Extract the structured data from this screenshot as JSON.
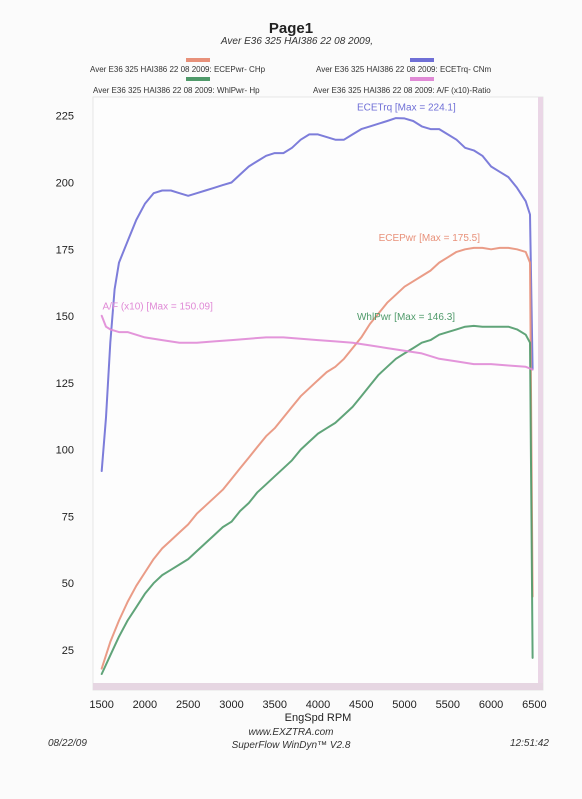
{
  "page": {
    "title": "Page1",
    "subtitle": "Aver E36 325 HAI386 22 08 2009,"
  },
  "legend": [
    {
      "label": "Aver E36 325 HAI386 22 08 2009: ECEPwr- CHp",
      "color": "#e8917a"
    },
    {
      "label": "Aver E36 325 HAI386 22 08 2009: ECETrq- CNm",
      "color": "#6f6fd6"
    },
    {
      "label": "Aver E36 325 HAI386 22 08 2009: WhlPwr- Hp",
      "color": "#4f9a6a"
    },
    {
      "label": "Aver E36 325 HAI386 22 08 2009: A/F (x10)-Ratio",
      "color": "#e08ad6"
    }
  ],
  "footer": {
    "date": "08/22/09",
    "site": "www.EXZTRA.com",
    "software": "SuperFlow WinDyn™ V2.8",
    "time": "12:51:42"
  },
  "chart_data": {
    "type": "line",
    "xlabel": "EngSpd  RPM",
    "ylabel": "",
    "xlim": [
      1400,
      6600
    ],
    "ylim": [
      10,
      232
    ],
    "xticks": [
      1500,
      2000,
      2500,
      3000,
      3500,
      4000,
      4500,
      5000,
      5500,
      6000,
      6500
    ],
    "yticks": [
      25,
      50,
      75,
      100,
      125,
      150,
      175,
      200,
      225
    ],
    "grid": false,
    "series": [
      {
        "name": "ECETrq",
        "annotation": "ECETrq [Max = 224.1]",
        "color": "#6f6fd6",
        "x": [
          1500,
          1550,
          1600,
          1650,
          1700,
          1800,
          1900,
          2000,
          2100,
          2200,
          2300,
          2400,
          2500,
          2600,
          2700,
          2800,
          2900,
          3000,
          3100,
          3200,
          3300,
          3400,
          3500,
          3600,
          3700,
          3800,
          3900,
          4000,
          4100,
          4200,
          4300,
          4400,
          4500,
          4600,
          4700,
          4800,
          4900,
          5000,
          5100,
          5200,
          5300,
          5400,
          5500,
          5600,
          5700,
          5800,
          5900,
          6000,
          6100,
          6200,
          6300,
          6400,
          6450,
          6480
        ],
        "values": [
          92,
          112,
          140,
          160,
          170,
          178,
          186,
          192,
          196,
          197,
          197,
          196,
          195,
          196,
          197,
          198,
          199,
          200,
          203,
          206,
          208,
          210,
          211,
          211,
          213,
          216,
          218,
          218,
          217,
          216,
          216,
          218,
          220,
          221,
          222,
          223,
          224.1,
          224,
          223,
          221,
          220,
          220,
          218,
          216,
          213,
          212,
          210,
          206,
          204,
          202,
          198,
          193,
          188,
          130
        ]
      },
      {
        "name": "ECEPwr",
        "annotation": "ECEPwr [Max = 175.5]",
        "color": "#e8917a",
        "x": [
          1500,
          1600,
          1700,
          1800,
          1900,
          2000,
          2100,
          2200,
          2300,
          2400,
          2500,
          2600,
          2700,
          2800,
          2900,
          3000,
          3100,
          3200,
          3300,
          3400,
          3500,
          3600,
          3700,
          3800,
          3900,
          4000,
          4100,
          4200,
          4300,
          4400,
          4500,
          4600,
          4700,
          4800,
          4900,
          5000,
          5100,
          5200,
          5300,
          5400,
          5500,
          5600,
          5700,
          5800,
          5900,
          6000,
          6100,
          6200,
          6300,
          6400,
          6450,
          6480
        ],
        "values": [
          18,
          28,
          36,
          43,
          49,
          54,
          59,
          63,
          66,
          69,
          72,
          76,
          79,
          82,
          85,
          89,
          93,
          97,
          101,
          105,
          108,
          112,
          116,
          120,
          123,
          126,
          129,
          131,
          134,
          138,
          142,
          147,
          151,
          155,
          158,
          161,
          163,
          165,
          167,
          170,
          172,
          174,
          175,
          175.5,
          175.5,
          175,
          175.5,
          175.5,
          175,
          174,
          170,
          45
        ]
      },
      {
        "name": "WhlPwr",
        "annotation": "WhlPwr [Max = 146.3]",
        "color": "#4f9a6a",
        "x": [
          1500,
          1600,
          1700,
          1800,
          1900,
          2000,
          2100,
          2200,
          2300,
          2400,
          2500,
          2600,
          2700,
          2800,
          2900,
          3000,
          3100,
          3200,
          3300,
          3400,
          3500,
          3600,
          3700,
          3800,
          3900,
          4000,
          4100,
          4200,
          4300,
          4400,
          4500,
          4600,
          4700,
          4800,
          4900,
          5000,
          5100,
          5200,
          5300,
          5400,
          5500,
          5600,
          5700,
          5800,
          5900,
          6000,
          6100,
          6200,
          6300,
          6400,
          6450,
          6480
        ],
        "values": [
          16,
          23,
          30,
          36,
          41,
          46,
          50,
          53,
          55,
          57,
          59,
          62,
          65,
          68,
          71,
          73,
          77,
          80,
          84,
          87,
          90,
          93,
          96,
          100,
          103,
          106,
          108,
          110,
          113,
          116,
          120,
          124,
          128,
          131,
          134,
          136,
          138,
          140,
          141,
          143,
          144,
          145,
          146,
          146.3,
          146,
          146,
          146,
          146,
          145,
          143,
          140,
          22
        ]
      },
      {
        "name": "A/F",
        "annotation": "A/F  (x10) [Max = 150.09]",
        "color": "#e08ad6",
        "x": [
          1500,
          1550,
          1600,
          1700,
          1800,
          2000,
          2200,
          2400,
          2600,
          2800,
          3000,
          3200,
          3400,
          3600,
          3800,
          4000,
          4200,
          4400,
          4600,
          4800,
          5000,
          5200,
          5400,
          5600,
          5800,
          6000,
          6200,
          6400,
          6480
        ],
        "values": [
          150.09,
          146,
          145,
          144,
          144,
          142,
          141,
          140,
          140,
          140.5,
          141,
          141.5,
          142,
          142,
          141.5,
          141,
          140.5,
          140,
          139,
          138,
          137,
          136,
          134,
          133,
          132,
          132,
          131.5,
          131,
          130
        ]
      }
    ]
  }
}
